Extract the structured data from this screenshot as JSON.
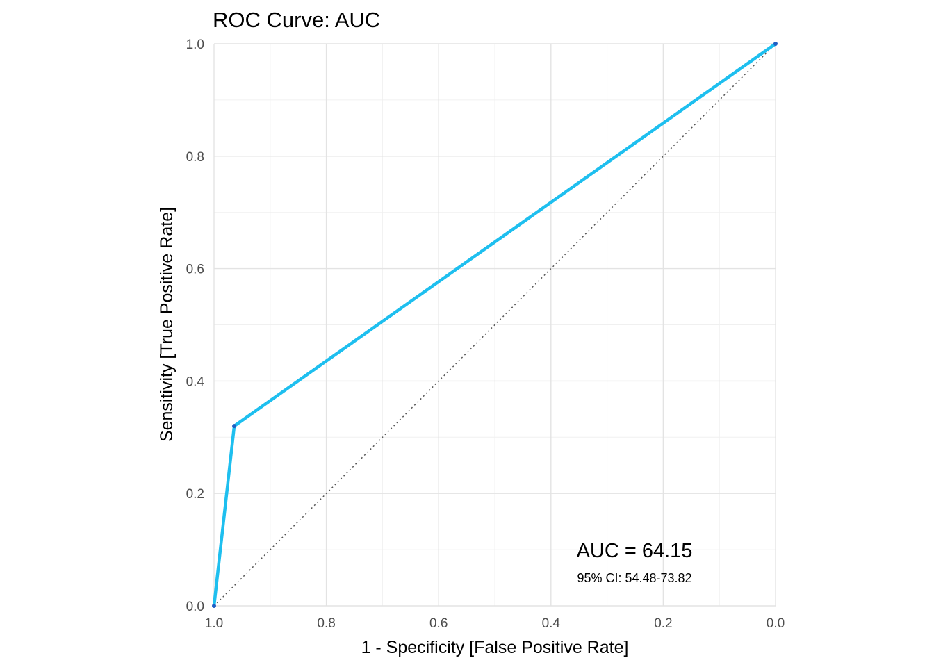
{
  "chart_data": {
    "type": "line",
    "title": "ROC Curve: AUC",
    "xlabel": "1 - Specificity [False Positive Rate]",
    "ylabel": "Sensitivity [True Positive Rate]",
    "x_reversed": true,
    "xlim": [
      1.0,
      0.0
    ],
    "ylim": [
      0.0,
      1.0
    ],
    "x_ticks": [
      "1.0",
      "0.8",
      "0.6",
      "0.4",
      "0.2",
      "0.0"
    ],
    "y_ticks": [
      "0.0",
      "0.2",
      "0.4",
      "0.6",
      "0.8",
      "1.0"
    ],
    "grid": true,
    "series": [
      {
        "color": "#1ebfef",
        "points": [
          {
            "x": 1.0,
            "y": 0.0
          },
          {
            "x": 0.964,
            "y": 0.32
          },
          {
            "x": 0.0,
            "y": 1.0
          }
        ]
      }
    ],
    "reference_line": {
      "from": [
        1.0,
        0.0
      ],
      "to": [
        0.0,
        1.0
      ],
      "style": "dotted",
      "color": "#555555"
    },
    "annotations": {
      "auc": "AUC = 64.15",
      "ci": "95% CI: 54.48-73.82"
    }
  }
}
